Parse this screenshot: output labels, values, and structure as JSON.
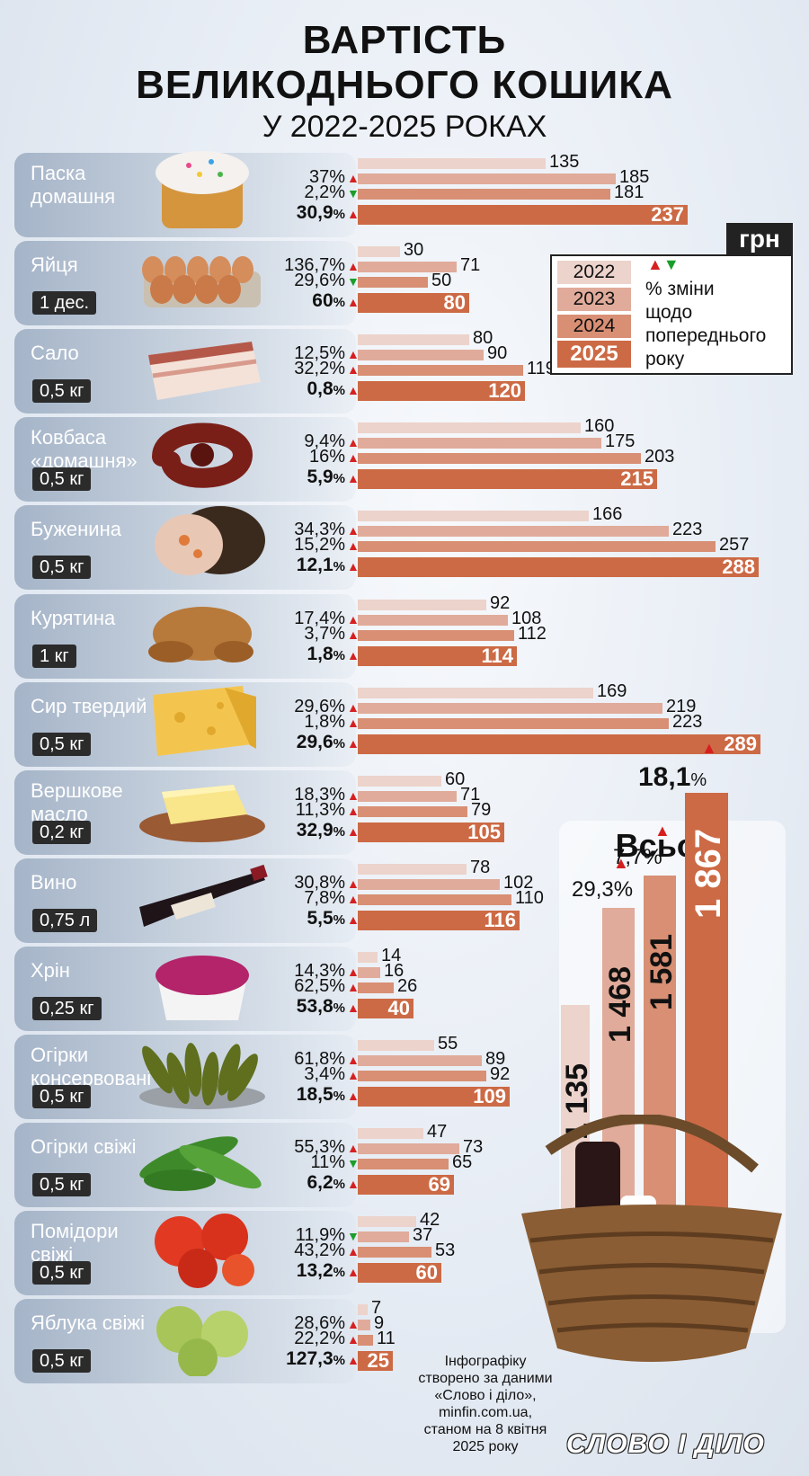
{
  "header": {
    "title_line1": "ВАРТІСТЬ",
    "title_line2": "ВЕЛИКОДНЬОГО КОШИКА",
    "subtitle": "У 2022-2025 РОКАХ"
  },
  "unit": "грн",
  "legend": {
    "years": [
      "2022",
      "2023",
      "2024",
      "2025"
    ],
    "text_lines": [
      "% зміни",
      "щодо",
      "попереднього",
      "року"
    ]
  },
  "colors": {
    "2022": "#ecd3cb",
    "2023": "#e0ab9a",
    "2024": "#d88f74",
    "2025": "#cc6a45",
    "arrow_up": "#d62020",
    "arrow_down": "#1a9e2a"
  },
  "chart_data": [
    {
      "type": "bar",
      "orientation": "horizontal",
      "series_names": [
        "2022",
        "2023",
        "2024",
        "2025"
      ],
      "items": [
        {
          "name_lines": [
            "Паска",
            "домашня"
          ],
          "qty": "",
          "values": [
            135,
            185,
            181,
            237
          ],
          "changes": [
            {
              "pct": "37%",
              "dir": "up"
            },
            {
              "pct": "2,2%",
              "dir": "down"
            },
            {
              "pct": "30,9",
              "dir": "up"
            }
          ],
          "image": "easter-cake"
        },
        {
          "name_lines": [
            "Яйця"
          ],
          "qty": "1 дес.",
          "values": [
            30,
            71,
            50,
            80
          ],
          "changes": [
            {
              "pct": "136,7%",
              "dir": "up"
            },
            {
              "pct": "29,6%",
              "dir": "down"
            },
            {
              "pct": "60",
              "dir": "up"
            }
          ],
          "image": "eggs"
        },
        {
          "name_lines": [
            "Сало"
          ],
          "qty": "0,5 кг",
          "values": [
            80,
            90,
            119,
            120
          ],
          "changes": [
            {
              "pct": "12,5%",
              "dir": "up"
            },
            {
              "pct": "32,2%",
              "dir": "up"
            },
            {
              "pct": "0,8",
              "dir": "up"
            }
          ],
          "image": "salo"
        },
        {
          "name_lines": [
            "Ковбаса",
            "«домашня»"
          ],
          "qty": "0,5 кг",
          "values": [
            160,
            175,
            203,
            215
          ],
          "changes": [
            {
              "pct": "9,4%",
              "dir": "up"
            },
            {
              "pct": "16%",
              "dir": "up"
            },
            {
              "pct": "5,9",
              "dir": "up"
            }
          ],
          "image": "sausage"
        },
        {
          "name_lines": [
            "Буженина"
          ],
          "qty": "0,5 кг",
          "values": [
            166,
            223,
            257,
            288
          ],
          "changes": [
            {
              "pct": "34,3%",
              "dir": "up"
            },
            {
              "pct": "15,2%",
              "dir": "up"
            },
            {
              "pct": "12,1",
              "dir": "up"
            }
          ],
          "image": "pork"
        },
        {
          "name_lines": [
            "Курятина"
          ],
          "qty": "1 кг",
          "values": [
            92,
            108,
            112,
            114
          ],
          "changes": [
            {
              "pct": "17,4%",
              "dir": "up"
            },
            {
              "pct": "3,7%",
              "dir": "up"
            },
            {
              "pct": "1,8",
              "dir": "up"
            }
          ],
          "image": "chicken"
        },
        {
          "name_lines": [
            "Сир твердий"
          ],
          "qty": "0,5 кг",
          "values": [
            169,
            219,
            223,
            289
          ],
          "changes": [
            {
              "pct": "29,6%",
              "dir": "up"
            },
            {
              "pct": "1,8%",
              "dir": "up"
            },
            {
              "pct": "29,6",
              "dir": "up"
            }
          ],
          "image": "cheese"
        },
        {
          "name_lines": [
            "Вершкове",
            "масло"
          ],
          "qty": "0,2 кг",
          "values": [
            60,
            71,
            79,
            105
          ],
          "changes": [
            {
              "pct": "18,3%",
              "dir": "up"
            },
            {
              "pct": "11,3%",
              "dir": "up"
            },
            {
              "pct": "32,9",
              "dir": "up"
            }
          ],
          "image": "butter"
        },
        {
          "name_lines": [
            "Вино"
          ],
          "qty": "0,75 л",
          "values": [
            78,
            102,
            110,
            116
          ],
          "changes": [
            {
              "pct": "30,8%",
              "dir": "up"
            },
            {
              "pct": "7,8%",
              "dir": "up"
            },
            {
              "pct": "5,5",
              "dir": "up"
            }
          ],
          "image": "wine"
        },
        {
          "name_lines": [
            "Хрін"
          ],
          "qty": "0,25 кг",
          "values": [
            14,
            16,
            26,
            40
          ],
          "changes": [
            {
              "pct": "14,3%",
              "dir": "up"
            },
            {
              "pct": "62,5%",
              "dir": "up"
            },
            {
              "pct": "53,8",
              "dir": "up"
            }
          ],
          "image": "horseradish"
        },
        {
          "name_lines": [
            "Огірки",
            "консервовані"
          ],
          "qty": "0,5 кг",
          "values": [
            55,
            89,
            92,
            109
          ],
          "changes": [
            {
              "pct": "61,8%",
              "dir": "up"
            },
            {
              "pct": "3,4%",
              "dir": "up"
            },
            {
              "pct": "18,5",
              "dir": "up"
            }
          ],
          "image": "pickles"
        },
        {
          "name_lines": [
            "Огірки свіжі"
          ],
          "qty": "0,5 кг",
          "values": [
            47,
            73,
            65,
            69
          ],
          "changes": [
            {
              "pct": "55,3%",
              "dir": "up"
            },
            {
              "pct": "11%",
              "dir": "down"
            },
            {
              "pct": "6,2",
              "dir": "up"
            }
          ],
          "image": "cucumbers"
        },
        {
          "name_lines": [
            "Помідори",
            "свіжі"
          ],
          "qty": "0,5 кг",
          "values": [
            42,
            37,
            53,
            60
          ],
          "changes": [
            {
              "pct": "11,9%",
              "dir": "down"
            },
            {
              "pct": "43,2%",
              "dir": "up"
            },
            {
              "pct": "13,2",
              "dir": "up"
            }
          ],
          "image": "tomatoes"
        },
        {
          "name_lines": [
            "Яблука свіжі"
          ],
          "qty": "0,5 кг",
          "values": [
            7,
            9,
            11,
            25
          ],
          "changes": [
            {
              "pct": "28,6%",
              "dir": "up"
            },
            {
              "pct": "22,2%",
              "dir": "up"
            },
            {
              "pct": "127,3",
              "dir": "up"
            }
          ],
          "image": "apples"
        }
      ]
    },
    {
      "type": "bar",
      "orientation": "vertical",
      "title": "Всього",
      "categories": [
        "2022",
        "2023",
        "2024",
        "2025"
      ],
      "values": [
        1135,
        1468,
        1581,
        1867
      ],
      "value_labels": [
        "1 135",
        "1 468",
        "1 581",
        "1 867"
      ],
      "changes": [
        {
          "pct": "29,3%",
          "dir": "up"
        },
        {
          "pct": "7,7%",
          "dir": "up"
        },
        {
          "pct": "18,1",
          "dir": "up"
        }
      ]
    }
  ],
  "percent_unit": "%",
  "footnote_lines": [
    "Інфографіку",
    "створено за даними",
    "«Слово і діло»,",
    "minfin.com.ua,",
    "станом на 8 квітня",
    "2025 року"
  ],
  "logo": "СЛОВО І ДІЛО"
}
